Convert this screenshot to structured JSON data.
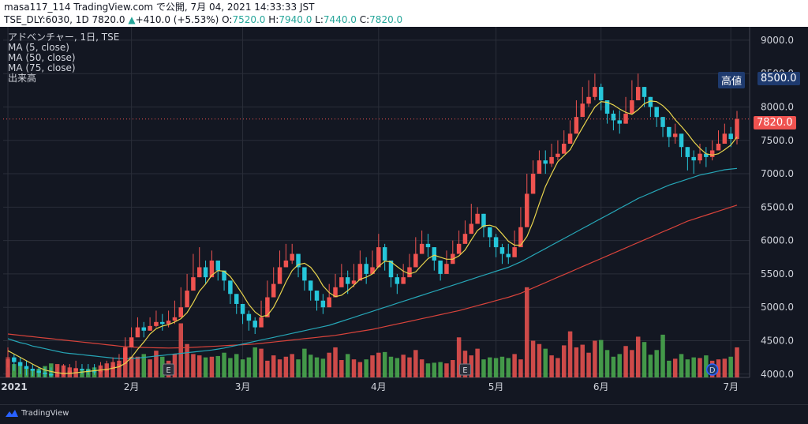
{
  "header": {
    "line1": "masa117_114 TradingView.com で公開, 7月 04, 2021 14:33:33 JST",
    "symbol": "TSE_DLY:6030, 1D",
    "last": "7820.0",
    "change_arrow": "▲",
    "change": "+410.0 (+5.53%)",
    "o_label": "O:",
    "o_value": "7520.0",
    "h_label": "H:",
    "h_value": "7940.0",
    "l_label": "L:",
    "l_value": "7440.0",
    "c_label": "C:",
    "c_value": "7820.0"
  },
  "legend": {
    "title": "アドベンチャー, 1日, TSE",
    "ma5": "MA (5, close)",
    "ma50": "MA (50, close)",
    "ma75": "MA (75, close)",
    "volume": "出来高"
  },
  "price_tags": {
    "high_label": "高値",
    "high_value": "8500.0",
    "last_value": "7820.0"
  },
  "event_markers": {
    "earnings": "E",
    "dividend": "D"
  },
  "footer": {
    "brand": "TradingView"
  },
  "colors": {
    "up": "#ef5350",
    "down": "#26c6da",
    "vol_up": "#ef5350",
    "vol_down": "#4caf50",
    "ma5": "#e8d44d",
    "ma50": "#26a6b7",
    "ma75": "#d8433b",
    "bg": "#131722",
    "grid": "#2a2e39",
    "last_tag": "#ef5350",
    "high_tag": "#1e3a6e"
  },
  "chart_data": {
    "type": "candlestick",
    "y_axis": {
      "ticks": [
        "4000.0",
        "4500.0",
        "5000.0",
        "5500.0",
        "6000.0",
        "6500.0",
        "7000.0",
        "7500.0",
        "8000.0",
        "8500.0",
        "9000.0"
      ],
      "range": [
        3950,
        9200
      ]
    },
    "x_axis": {
      "labels": [
        {
          "text": "2021",
          "index": 0
        },
        {
          "text": "2月",
          "index": 20
        },
        {
          "text": "3月",
          "index": 38
        },
        {
          "text": "4月",
          "index": 60
        },
        {
          "text": "5月",
          "index": 79
        },
        {
          "text": "6月",
          "index": 96
        },
        {
          "text": "7月",
          "index": 117
        }
      ]
    },
    "candles_close": [
      4250,
      4180,
      4120,
      4080,
      4050,
      4020,
      4000,
      3980,
      3990,
      4010,
      4050,
      4080,
      4060,
      4040,
      4030,
      4050,
      4080,
      4120,
      4150,
      4400,
      4550,
      4700,
      4650,
      4720,
      4780,
      4750,
      4800,
      4850,
      5000,
      5250,
      5450,
      5600,
      5450,
      5700,
      5550,
      5400,
      5200,
      5050,
      4900,
      4800,
      4700,
      4850,
      5150,
      5350,
      5600,
      5700,
      5800,
      5600,
      5400,
      5250,
      5100,
      5000,
      5150,
      5300,
      5450,
      5350,
      5400,
      5650,
      5500,
      5600,
      5900,
      5700,
      5450,
      5350,
      5450,
      5600,
      5800,
      5950,
      5900,
      5700,
      5500,
      5650,
      5800,
      5950,
      6100,
      6250,
      6400,
      6200,
      6050,
      5900,
      5800,
      5750,
      5900,
      6200,
      6700,
      7000,
      7200,
      7150,
      7250,
      7300,
      7450,
      7600,
      7850,
      8050,
      8150,
      8300,
      8100,
      7900,
      7800,
      7750,
      7900,
      8100,
      8300,
      8150,
      8000,
      7850,
      7700,
      7550,
      7600,
      7400,
      7250,
      7200,
      7300,
      7250,
      7350,
      7450,
      7600,
      7520,
      7820
    ],
    "candles_high": [
      4400,
      4300,
      4250,
      4200,
      4150,
      4100,
      4100,
      4100,
      4100,
      4150,
      4150,
      4200,
      4150,
      4150,
      4150,
      4180,
      4200,
      4250,
      4300,
      4550,
      4700,
      4850,
      4780,
      4850,
      4950,
      4900,
      4950,
      5100,
      5300,
      5500,
      5800,
      5900,
      5700,
      5850,
      5700,
      5500,
      5350,
      5200,
      5050,
      4950,
      4850,
      5100,
      5400,
      5600,
      5850,
      5950,
      5950,
      5750,
      5550,
      5400,
      5250,
      5200,
      5350,
      5500,
      5650,
      5550,
      5650,
      5850,
      5750,
      5850,
      6100,
      5950,
      5600,
      5500,
      5650,
      5800,
      6050,
      6150,
      6100,
      5900,
      5700,
      5850,
      6000,
      6150,
      6300,
      6550,
      6500,
      6400,
      6200,
      6100,
      5950,
      5950,
      6150,
      6500,
      7000,
      7200,
      7350,
      7350,
      7450,
      7500,
      7650,
      7800,
      8100,
      8300,
      8400,
      8500,
      8350,
      8100,
      7950,
      7950,
      8150,
      8400,
      8500,
      8300,
      8150,
      8000,
      7850,
      7700,
      7750,
      7550,
      7400,
      7350,
      7450,
      7400,
      7500,
      7650,
      7750,
      7700,
      7940
    ],
    "candles_low": [
      4100,
      4050,
      4000,
      3980,
      3970,
      3960,
      3950,
      3950,
      3960,
      3970,
      4000,
      4020,
      4000,
      3990,
      3990,
      4000,
      4040,
      4070,
      4100,
      4300,
      4450,
      4600,
      4550,
      4650,
      4700,
      4650,
      4700,
      4750,
      4900,
      5100,
      5350,
      5450,
      5350,
      5550,
      5400,
      5250,
      5050,
      4900,
      4750,
      4650,
      4600,
      4750,
      5050,
      5250,
      5450,
      5600,
      5650,
      5450,
      5250,
      5100,
      4950,
      4900,
      5050,
      5200,
      5350,
      5200,
      5300,
      5500,
      5350,
      5500,
      5750,
      5550,
      5300,
      5200,
      5350,
      5500,
      5700,
      5800,
      5750,
      5550,
      5400,
      5550,
      5700,
      5850,
      6000,
      6150,
      6250,
      6050,
      5900,
      5750,
      5650,
      5650,
      5800,
      6100,
      6500,
      6850,
      7050,
      7000,
      7100,
      7200,
      7350,
      7450,
      7700,
      7900,
      8000,
      8100,
      7950,
      7750,
      7650,
      7600,
      7750,
      7950,
      8100,
      8000,
      7850,
      7700,
      7550,
      7400,
      7450,
      7250,
      7050,
      7000,
      7150,
      7100,
      7200,
      7350,
      7450,
      7400,
      7440
    ],
    "volume": [
      4230,
      4150,
      4120,
      4100,
      4060,
      4080,
      4120,
      4160,
      4150,
      4130,
      4100,
      4090,
      4070,
      4080,
      4100,
      4130,
      4160,
      4180,
      4200,
      4380,
      4260,
      4260,
      4300,
      4220,
      4350,
      4260,
      4200,
      4300,
      4760,
      4450,
      4300,
      4280,
      4250,
      4260,
      4270,
      4320,
      4240,
      4300,
      4220,
      4250,
      4400,
      4380,
      4200,
      4280,
      4220,
      4260,
      4300,
      4220,
      4380,
      4290,
      4250,
      4230,
      4320,
      4400,
      4210,
      4300,
      4220,
      4180,
      4220,
      4280,
      4320,
      4330,
      4260,
      4240,
      4290,
      4250,
      4360,
      4220,
      4160,
      4170,
      4180,
      4160,
      4210,
      4550,
      4350,
      4280,
      4380,
      4220,
      4250,
      4240,
      4260,
      4240,
      4300,
      4220,
      5300,
      4500,
      4450,
      4380,
      4280,
      4240,
      4430,
      4640,
      4400,
      4440,
      4320,
      4500,
      4510,
      4360,
      4260,
      4300,
      4420,
      4360,
      4560,
      4480,
      4290,
      4360,
      4590,
      4200,
      4230,
      4300,
      4220,
      4250,
      4240,
      4280,
      4200,
      4220,
      4230,
      4260,
      4400
    ],
    "ma5": [
      4350,
      4300,
      4250,
      4200,
      4150,
      4100,
      4060,
      4040,
      4020,
      4010,
      4010,
      4020,
      4030,
      4040,
      4050,
      4060,
      4070,
      4090,
      4110,
      4160,
      4250,
      4370,
      4480,
      4600,
      4680,
      4720,
      4740,
      4780,
      4830,
      4920,
      5070,
      5240,
      5350,
      5480,
      5550,
      5540,
      5460,
      5330,
      5190,
      5040,
      4930,
      4860,
      4880,
      5000,
      5180,
      5380,
      5550,
      5640,
      5660,
      5600,
      5480,
      5320,
      5220,
      5160,
      5180,
      5250,
      5330,
      5420,
      5450,
      5500,
      5610,
      5690,
      5680,
      5610,
      5540,
      5500,
      5530,
      5630,
      5730,
      5780,
      5750,
      5720,
      5720,
      5770,
      5860,
      6010,
      6150,
      6220,
      6230,
      6200,
      6100,
      5990,
      5930,
      5930,
      6060,
      6280,
      6550,
      6810,
      7000,
      7180,
      7270,
      7360,
      7530,
      7690,
      7850,
      8000,
      8080,
      8070,
      8030,
      7970,
      7920,
      7890,
      7960,
      8050,
      8090,
      8080,
      8020,
      7930,
      7810,
      7710,
      7600,
      7480,
      7380,
      7300,
      7280,
      7300,
      7360,
      7430,
      7550
    ],
    "ma50": [
      4530,
      4500,
      4470,
      4450,
      4420,
      4400,
      4380,
      4360,
      4340,
      4320,
      4310,
      4300,
      4290,
      4280,
      4270,
      4260,
      4250,
      4240,
      4235,
      4230,
      4235,
      4240,
      4250,
      4260,
      4270,
      4280,
      4290,
      4300,
      4310,
      4320,
      4330,
      4340,
      4350,
      4360,
      4375,
      4390,
      4410,
      4430,
      4450,
      4470,
      4490,
      4510,
      4530,
      4550,
      4570,
      4590,
      4610,
      4630,
      4650,
      4670,
      4690,
      4710,
      4730,
      4760,
      4790,
      4820,
      4850,
      4880,
      4910,
      4940,
      4970,
      5000,
      5030,
      5060,
      5090,
      5120,
      5150,
      5180,
      5210,
      5240,
      5270,
      5300,
      5330,
      5360,
      5390,
      5420,
      5450,
      5480,
      5510,
      5540,
      5570,
      5600,
      5640,
      5680,
      5730,
      5780,
      5830,
      5880,
      5930,
      5980,
      6030,
      6080,
      6130,
      6180,
      6230,
      6280,
      6330,
      6380,
      6430,
      6480,
      6530,
      6580,
      6630,
      6670,
      6710,
      6750,
      6790,
      6830,
      6860,
      6890,
      6920,
      6950,
      6980,
      7000,
      7020,
      7040,
      7060,
      7070,
      7080
    ],
    "ma75": [
      4600,
      4590,
      4580,
      4570,
      4560,
      4550,
      4540,
      4530,
      4520,
      4510,
      4500,
      4490,
      4480,
      4470,
      4460,
      4450,
      4440,
      4430,
      4420,
      4410,
      4405,
      4400,
      4398,
      4396,
      4394,
      4392,
      4390,
      4392,
      4394,
      4396,
      4400,
      4405,
      4410,
      4415,
      4420,
      4425,
      4430,
      4435,
      4440,
      4445,
      4450,
      4460,
      4470,
      4480,
      4490,
      4500,
      4510,
      4520,
      4530,
      4540,
      4550,
      4560,
      4570,
      4580,
      4595,
      4610,
      4625,
      4640,
      4655,
      4670,
      4690,
      4710,
      4730,
      4750,
      4770,
      4790,
      4810,
      4830,
      4850,
      4870,
      4890,
      4910,
      4930,
      4950,
      4975,
      5000,
      5025,
      5050,
      5075,
      5100,
      5125,
      5150,
      5180,
      5210,
      5250,
      5290,
      5330,
      5370,
      5410,
      5450,
      5490,
      5530,
      5570,
      5610,
      5650,
      5690,
      5730,
      5770,
      5810,
      5850,
      5890,
      5930,
      5970,
      6010,
      6050,
      6090,
      6130,
      6170,
      6210,
      6250,
      6290,
      6320,
      6350,
      6380,
      6410,
      6440,
      6470,
      6500,
      6530
    ]
  }
}
